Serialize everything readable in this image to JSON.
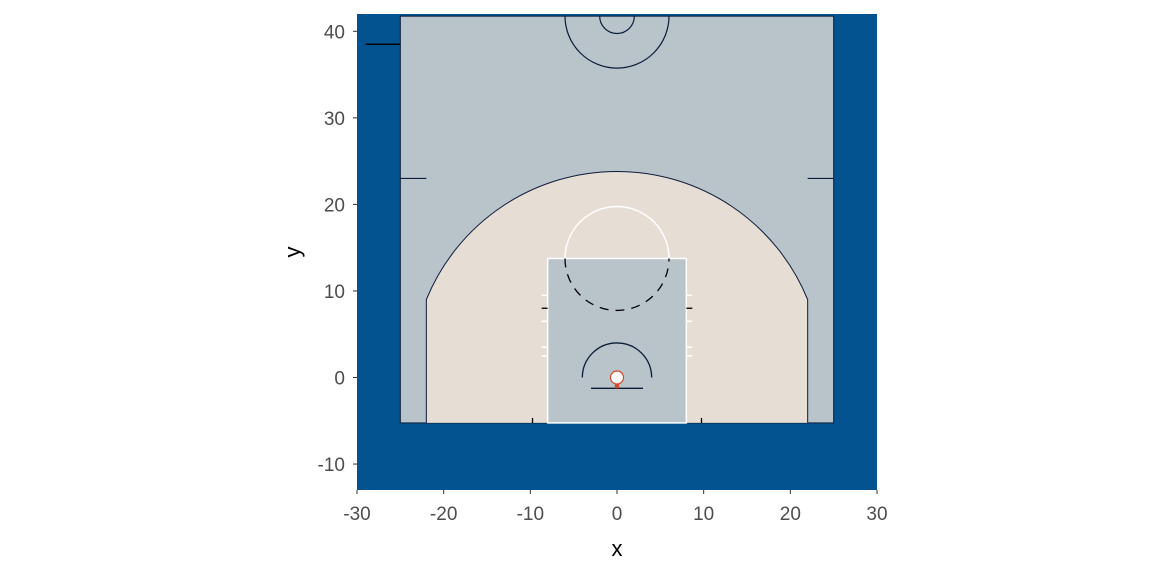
{
  "chart_data": {
    "type": "court-diagram",
    "xlabel": "x",
    "ylabel": "y",
    "xlim": [
      -30,
      30
    ],
    "ylim": [
      -13,
      42
    ],
    "x_ticks": [
      -30,
      -20,
      -10,
      0,
      10,
      20,
      30
    ],
    "y_ticks": [
      -10,
      0,
      10,
      20,
      30,
      40
    ],
    "x_tick_labels": [
      "-30",
      "-20",
      "-10",
      "0",
      "10",
      "20",
      "30"
    ],
    "y_tick_labels": [
      "-10",
      "0",
      "10",
      "20",
      "30",
      "40"
    ],
    "grid": false,
    "colors": {
      "outside": "#02538f",
      "court": "#b8c3ca",
      "three_point_area": "#e6ddd5",
      "lines": "#0c1b3a",
      "paint_lines": "#ffffff",
      "rim": "#ffffff",
      "hoop": "#d14a2a"
    },
    "court": {
      "sideline_x": [
        -25,
        25
      ],
      "baseline_y": -5.25,
      "court_top_y": 41.75,
      "center_circle": {
        "center": [
          0,
          41.75
        ],
        "outer_radius": 6,
        "inner_radius": 2
      },
      "three_point_arc": {
        "center": [
          0,
          0
        ],
        "radius": 23.75,
        "corner_x": 22,
        "corner_top_y": 9.0
      },
      "paint": {
        "x": [
          -8,
          8
        ],
        "y": [
          -5.25,
          13.75
        ]
      },
      "free_throw_circle": {
        "center": [
          0,
          13.75
        ],
        "radius": 6
      },
      "restricted_arc": {
        "center": [
          0,
          0
        ],
        "radius": 4,
        "base_y": 0
      },
      "backboard": {
        "x": [
          -3,
          3
        ],
        "y": -1.25
      },
      "rim": {
        "center": [
          0,
          0
        ],
        "radius": 0.75
      },
      "hash_ticks_y": [
        2.5,
        3.5,
        6.5,
        9.5
      ],
      "baseline_ticks_x": [
        -9.75,
        9.75
      ],
      "coach_box_y": 38.5,
      "midline_ticks_y": 23.0
    }
  }
}
